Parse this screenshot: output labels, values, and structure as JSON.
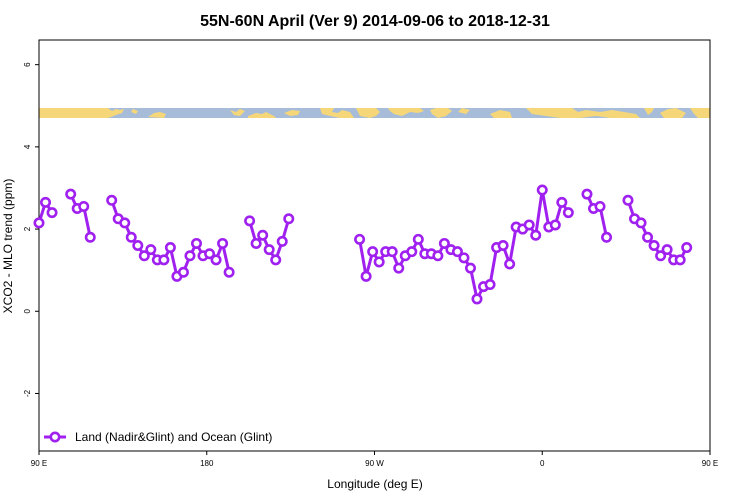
{
  "chart_data": {
    "type": "line",
    "title": "55N-60N April (Ver 9)   2014-09-06 to 2018-12-31",
    "xlabel": "Longitude (deg E)",
    "ylabel": "XCO2 - MLO trend (ppm)",
    "xlim": [
      90,
      450
    ],
    "ylim": [
      -3.4,
      6.6
    ],
    "xticks": [
      {
        "value": 90,
        "label": "90 E"
      },
      {
        "value": 180,
        "label": "180"
      },
      {
        "value": 270,
        "label": "90 W"
      },
      {
        "value": 360,
        "label": "0"
      },
      {
        "value": 450,
        "label": "90 E"
      },
      {
        "value": 540,
        "label": "180"
      }
    ],
    "yticks": [
      -2,
      0,
      2,
      4,
      6
    ],
    "legend": {
      "position": "bottom-left",
      "label": "Land (Nadir&Glint) and Ocean (Glint)"
    },
    "series_color": "#a020f0",
    "land_band": {
      "y_range": [
        4.7,
        4.9
      ],
      "ocean_color": "#a6bcd9",
      "land_color": "#f5d77a"
    },
    "series": [
      {
        "segments": [
          [
            [
              90,
              2.15
            ],
            [
              93.5,
              2.65
            ],
            [
              97,
              2.4
            ]
          ],
          [
            [
              107,
              2.85
            ],
            [
              110.5,
              2.5
            ],
            [
              114,
              2.55
            ],
            [
              117.5,
              1.8
            ]
          ],
          [
            [
              129,
              2.7
            ],
            [
              132.5,
              2.25
            ],
            [
              136,
              2.15
            ],
            [
              139.5,
              1.8
            ],
            [
              143,
              1.6
            ],
            [
              146.5,
              1.35
            ],
            [
              150,
              1.5
            ],
            [
              153.5,
              1.25
            ],
            [
              157,
              1.25
            ],
            [
              160.5,
              1.55
            ],
            [
              164,
              0.85
            ],
            [
              167.5,
              0.95
            ],
            [
              171,
              1.35
            ],
            [
              174.5,
              1.65
            ],
            [
              178,
              1.35
            ],
            [
              181.5,
              1.4
            ],
            [
              185,
              1.25
            ],
            [
              188.5,
              1.65
            ],
            [
              192,
              0.95
            ]
          ],
          [
            [
              203,
              2.2
            ],
            [
              206.5,
              1.65
            ],
            [
              210,
              1.85
            ],
            [
              213.5,
              1.5
            ],
            [
              217,
              1.25
            ],
            [
              220.5,
              1.7
            ],
            [
              224,
              2.25
            ]
          ],
          [
            [
              262,
              1.75
            ],
            [
              265.5,
              0.85
            ],
            [
              269,
              1.45
            ],
            [
              272.5,
              1.2
            ],
            [
              276,
              1.45
            ],
            [
              279.5,
              1.45
            ],
            [
              283,
              1.05
            ],
            [
              286.5,
              1.35
            ],
            [
              290,
              1.45
            ],
            [
              293.5,
              1.75
            ],
            [
              297,
              1.4
            ],
            [
              300.5,
              1.4
            ],
            [
              304,
              1.35
            ],
            [
              307.5,
              1.65
            ],
            [
              311,
              1.5
            ],
            [
              314.5,
              1.45
            ],
            [
              318,
              1.3
            ],
            [
              321.5,
              1.05
            ],
            [
              325,
              0.3
            ],
            [
              328.5,
              0.6
            ],
            [
              332,
              0.65
            ],
            [
              335.5,
              1.55
            ],
            [
              339,
              1.6
            ],
            [
              342.5,
              1.15
            ],
            [
              346,
              2.05
            ],
            [
              349.5,
              2.0
            ],
            [
              353,
              2.1
            ],
            [
              356.5,
              1.85
            ],
            [
              360,
              2.95
            ],
            [
              363.5,
              2.05
            ],
            [
              367,
              2.1
            ],
            [
              370.5,
              2.65
            ],
            [
              374,
              2.4
            ]
          ],
          [
            [
              384,
              2.85
            ],
            [
              387.5,
              2.5
            ],
            [
              391,
              2.55
            ],
            [
              394.5,
              1.8
            ]
          ],
          [
            [
              406,
              2.7
            ],
            [
              409.5,
              2.25
            ],
            [
              413,
              2.15
            ],
            [
              416.5,
              1.8
            ],
            [
              420,
              1.6
            ],
            [
              423.5,
              1.35
            ],
            [
              427,
              1.5
            ],
            [
              430.5,
              1.25
            ],
            [
              434,
              1.25
            ],
            [
              437.5,
              1.55
            ]
          ]
        ]
      }
    ]
  }
}
